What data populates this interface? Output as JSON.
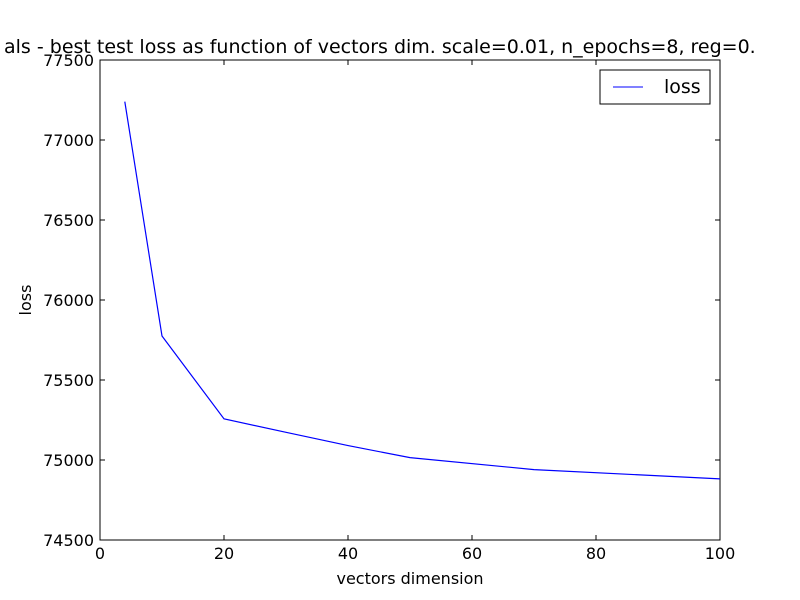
{
  "chart_data": {
    "type": "line",
    "title": "als - best test loss as function of vectors dim.  scale=0.01, n_epochs=8, reg=0.",
    "xlabel": "vectors dimension",
    "ylabel": "loss",
    "xlim": [
      0,
      100
    ],
    "ylim": [
      74500,
      77500
    ],
    "x_ticks": [
      0,
      20,
      40,
      60,
      80,
      100
    ],
    "y_ticks": [
      74500,
      75000,
      75500,
      76000,
      76500,
      77000,
      77500
    ],
    "grid": false,
    "legend_position": "top-right",
    "series": [
      {
        "name": "loss",
        "color": "#0000ff",
        "x": [
          4,
          10,
          20,
          30,
          40,
          50,
          70,
          100
        ],
        "y": [
          77240,
          75775,
          75257,
          75173,
          75090,
          75015,
          74940,
          74882
        ]
      }
    ]
  }
}
